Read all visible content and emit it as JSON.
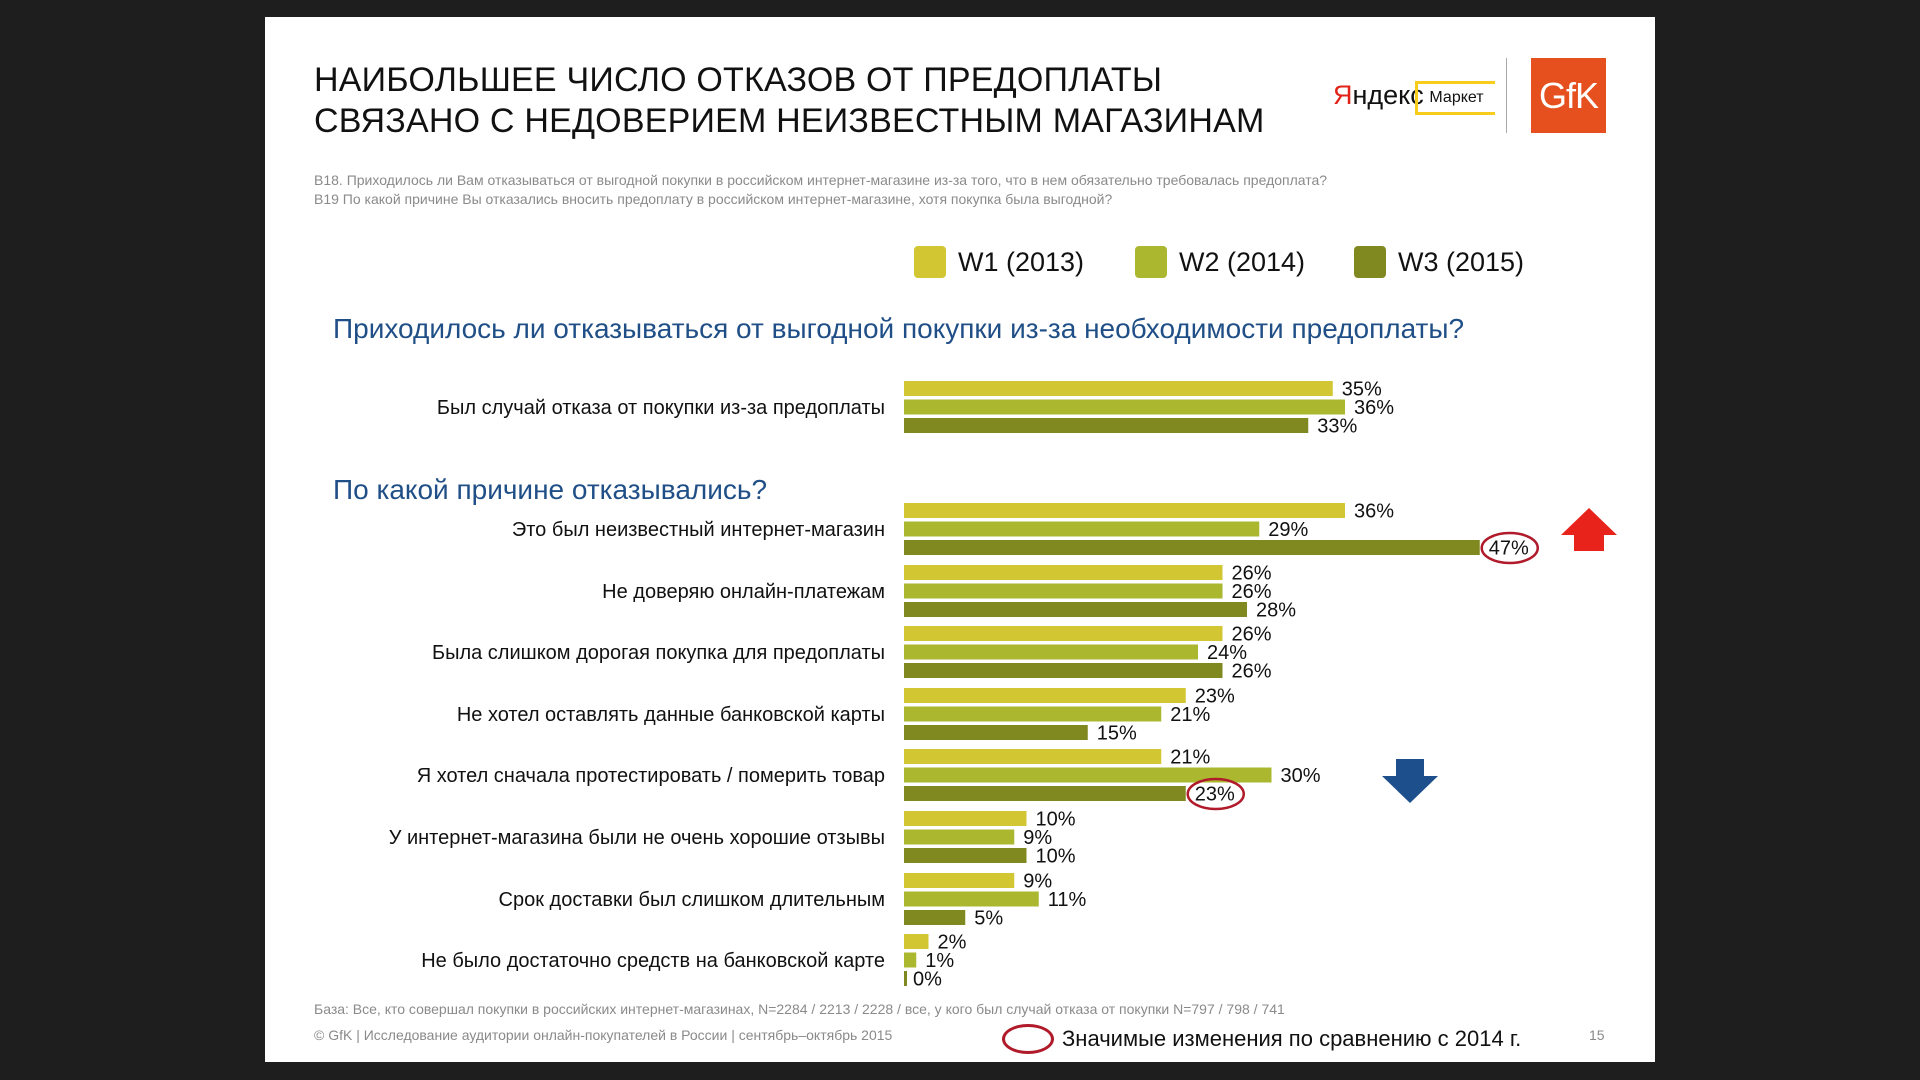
{
  "title_line1": "НАИБОЛЬШЕЕ ЧИСЛО ОТКАЗОВ ОТ ПРЕДОПЛАТЫ",
  "title_line2": "СВЯЗАНО С НЕДОВЕРИЕМ НЕИЗВЕСТНЫМ МАГАЗИНАМ",
  "question_b18": "B18. Приходилось ли Вам отказываться от выгодной покупки в российском интернет-магазине из-за того, что в нем обязательно требовалась предоплата?",
  "question_b19": "B19 По какой причине Вы отказались вносить предоплату в российском интернет-магазине, хотя покупка была выгодной?",
  "logos": {
    "yandex_red": "Я",
    "yandex_rest": "ндекс",
    "market": "Маркет",
    "gfk": "GfK"
  },
  "legend": [
    {
      "label": "W1 (2013)",
      "color": "#d3c633"
    },
    {
      "label": "W2 (2014)",
      "color": "#aab72f"
    },
    {
      "label": "W3 (2015)",
      "color": "#7f8920"
    }
  ],
  "section1_title": "Приходилось ли отказываться от выгодной покупки из-за необходимости предоплаты?",
  "section2_title": "По какой причине отказывались?",
  "chart_data": {
    "type": "bar",
    "orientation": "horizontal",
    "series_names": [
      "W1 (2013)",
      "W2 (2014)",
      "W3 (2015)"
    ],
    "value_suffix": "%",
    "groups": [
      {
        "label": "Был случай отказа от покупки из-за предоплаты",
        "values": [
          35,
          36,
          33
        ],
        "section": 1
      },
      {
        "label": "Это был неизвестный интернет-магазин",
        "values": [
          36,
          29,
          47
        ],
        "section": 2,
        "highlight": 2,
        "trend": "up"
      },
      {
        "label": "Не доверяю онлайн-платежам",
        "values": [
          26,
          26,
          28
        ],
        "section": 2
      },
      {
        "label": "Была слишком дорогая покупка для предоплаты",
        "values": [
          26,
          24,
          26
        ],
        "section": 2
      },
      {
        "label": "Не хотел оставлять данные банковской карты",
        "values": [
          23,
          21,
          15
        ],
        "section": 2
      },
      {
        "label": "Я хотел сначала протестировать / померить товар",
        "values": [
          21,
          30,
          23
        ],
        "section": 2,
        "highlight": 2,
        "trend": "down"
      },
      {
        "label": "У интернет-магазина были не очень хорошие отзывы",
        "values": [
          10,
          9,
          10
        ],
        "section": 2
      },
      {
        "label": "Срок доставки был слишком длительным",
        "values": [
          9,
          11,
          5
        ],
        "section": 2
      },
      {
        "label": "Не было достаточно средств на банковской карте",
        "values": [
          2,
          1,
          0
        ],
        "section": 2
      }
    ],
    "colors": [
      "#d3c633",
      "#aab72f",
      "#7f8920"
    ],
    "highlight_color": "#b01a2a",
    "arrow_up_color": "#e8231c",
    "arrow_down_color": "#1d4f8c"
  },
  "footer": {
    "base": "База: Все, кто совершал покупки в российских интернет-магазинах, N=2284 / 2213 / 2228 / все, у кого был случай отказа от покупки N=797 / 798 / 741",
    "copyright": "© GfK | Исследование аудитории онлайн-покупателей в России | сентябрь–октябрь 2015",
    "significance_legend": "Значимые изменения по сравнению с 2014 г.",
    "page_number": "15"
  }
}
